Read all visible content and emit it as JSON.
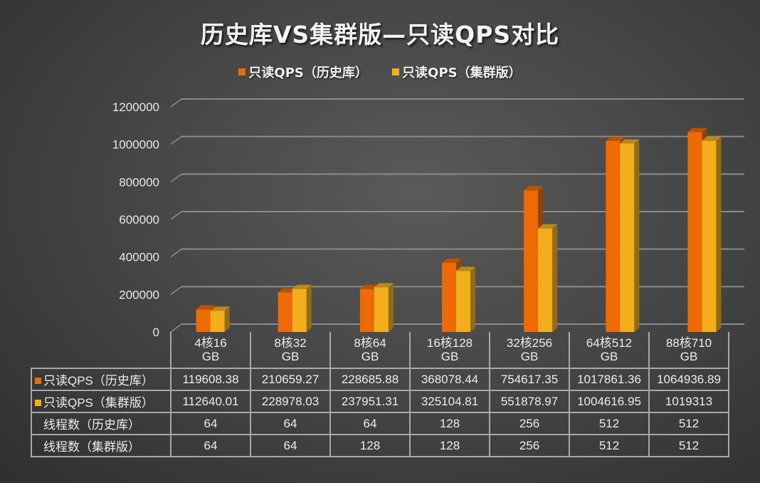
{
  "chart_data": {
    "type": "bar",
    "style": "3d-clustered-column-with-data-table",
    "title": "历史库VS集群版—只读QPS对比",
    "xlabel": "",
    "ylabel": "",
    "ylim": [
      0,
      1200000
    ],
    "yticks": [
      "0",
      "200000",
      "400000",
      "600000",
      "800000",
      "1000000",
      "1200000"
    ],
    "ytick_values": [
      0,
      200000,
      400000,
      600000,
      800000,
      1000000,
      1200000
    ],
    "grid": true,
    "legend_position": "top",
    "categories": [
      {
        "line1": "4核16",
        "line2": "GB"
      },
      {
        "line1": "8核32",
        "line2": "GB"
      },
      {
        "line1": "8核64",
        "line2": "GB"
      },
      {
        "line1": "16核128",
        "line2": "GB"
      },
      {
        "line1": "32核256",
        "line2": "GB"
      },
      {
        "line1": "64核512",
        "line2": "GB"
      },
      {
        "line1": "88核710",
        "line2": "GB"
      }
    ],
    "series": [
      {
        "name": "只读QPS（历史库）",
        "color": "#ee6a05",
        "values": [
          119608.38,
          210659.27,
          228685.88,
          368078.44,
          754617.35,
          1017861.36,
          1064936.89
        ],
        "labels": [
          "119608.38",
          "210659.27",
          "228685.88",
          "368078.44",
          "754617.35",
          "1017861.36",
          "1064936.89"
        ]
      },
      {
        "name": "只读QPS（集群版）",
        "color": "#f2ae1c",
        "values": [
          112640.01,
          228978.03,
          237951.31,
          325104.81,
          551878.97,
          1004616.95,
          1019313
        ],
        "labels": [
          "112640.01",
          "228978.03",
          "237951.31",
          "325104.81",
          "551878.97",
          "1004616.95",
          "1019313"
        ]
      }
    ],
    "table_extra_rows": [
      {
        "name": "线程数（历史库）",
        "values": [
          "64",
          "64",
          "64",
          "128",
          "256",
          "512",
          "512"
        ]
      },
      {
        "name": "线程数（集群版）",
        "values": [
          "64",
          "64",
          "128",
          "128",
          "256",
          "512",
          "512"
        ]
      }
    ]
  },
  "legend": {
    "items": [
      {
        "label": "只读QPS（历史库）",
        "color": "#ee6a05"
      },
      {
        "label": "只读QPS（集群版）",
        "color": "#f2ae1c"
      }
    ]
  }
}
